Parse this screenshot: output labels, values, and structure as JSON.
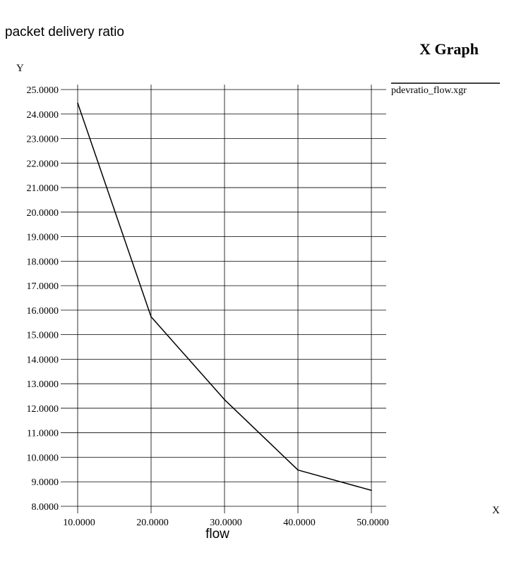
{
  "chart_data": {
    "type": "line",
    "window_title": "X Graph",
    "title": "packet delivery ratio",
    "xlabel": "flow",
    "x_axis_letter": "X",
    "y_axis_letter": "Y",
    "xlim": [
      10,
      50
    ],
    "ylim": [
      8,
      25
    ],
    "x_ticks": [
      "10.0000",
      "20.0000",
      "30.0000",
      "40.0000",
      "50.0000"
    ],
    "y_ticks": [
      "25.0000",
      "24.0000",
      "23.0000",
      "22.0000",
      "21.0000",
      "20.0000",
      "19.0000",
      "18.0000",
      "17.0000",
      "16.0000",
      "15.0000",
      "14.0000",
      "13.0000",
      "12.0000",
      "11.0000",
      "10.0000",
      "9.0000",
      "8.0000"
    ],
    "grid": true,
    "legend_position": "right",
    "series": [
      {
        "name": "pdevratio_flow.xgr",
        "color": "#000000",
        "x": [
          10,
          20,
          30,
          40,
          50
        ],
        "y": [
          24.45,
          15.73,
          12.35,
          9.48,
          8.65
        ]
      }
    ]
  }
}
